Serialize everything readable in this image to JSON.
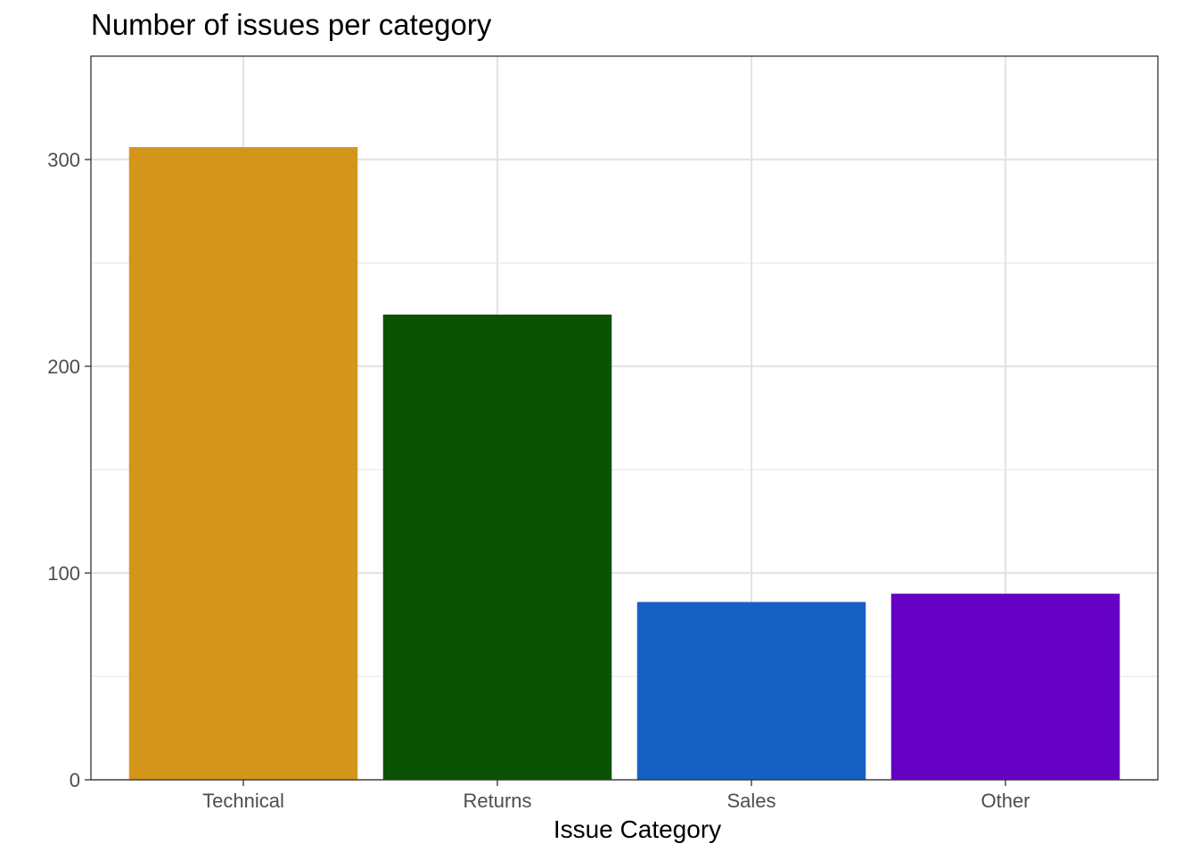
{
  "chart_data": {
    "type": "bar",
    "title": "Number of issues per category",
    "xlabel": "Issue Category",
    "ylabel": "",
    "categories": [
      "Technical",
      "Returns",
      "Sales",
      "Other"
    ],
    "values": [
      306,
      225,
      86,
      90
    ],
    "colors": [
      "#D4961A",
      "#0B5304",
      "#1660C4",
      "#6600C5"
    ],
    "ylim": [
      0,
      350
    ],
    "yticks": [
      0,
      100,
      200,
      300
    ],
    "yticks_minor": [
      50,
      150,
      250
    ],
    "grid": true,
    "legend": "none"
  }
}
